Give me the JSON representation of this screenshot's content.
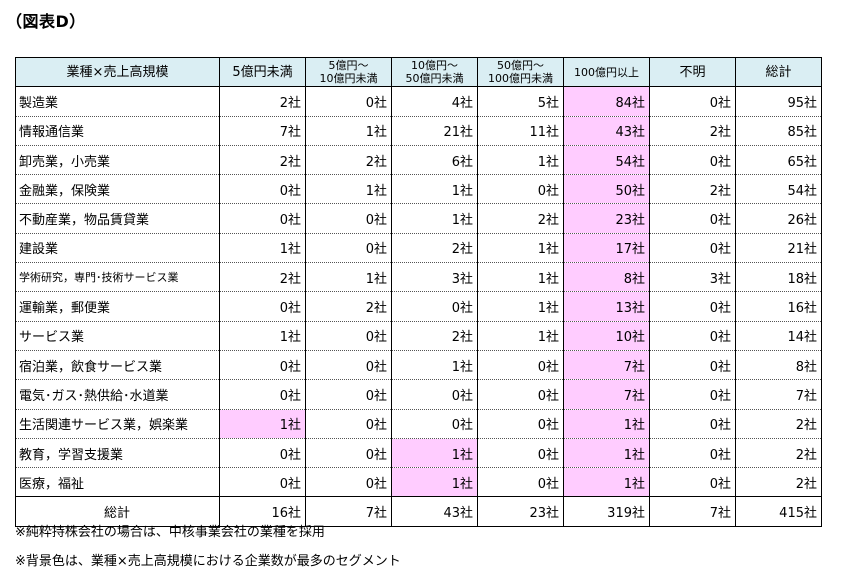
{
  "title": "（図表D）",
  "header": {
    "corner": "業種×売上高規模",
    "columns": [
      {
        "label": "5億円未満",
        "small": false
      },
      {
        "label": "5億円～\n10億円未満",
        "small": true
      },
      {
        "label": "10億円～\n50億円未満",
        "small": true
      },
      {
        "label": "50億円～\n100億円未満",
        "small": true
      },
      {
        "label": "100億円以上",
        "small": true
      },
      {
        "label": "不明",
        "small": false
      },
      {
        "label": "総計",
        "small": false
      }
    ]
  },
  "rows": [
    {
      "name": "製造業",
      "small": false,
      "values": [
        "2社",
        "0社",
        "4社",
        "5社",
        "84社",
        "0社",
        "95社"
      ],
      "highlight": [
        4
      ]
    },
    {
      "name": "情報通信業",
      "small": false,
      "values": [
        "7社",
        "1社",
        "21社",
        "11社",
        "43社",
        "2社",
        "85社"
      ],
      "highlight": [
        4
      ]
    },
    {
      "name": "卸売業，小売業",
      "small": false,
      "values": [
        "2社",
        "2社",
        "6社",
        "1社",
        "54社",
        "0社",
        "65社"
      ],
      "highlight": [
        4
      ]
    },
    {
      "name": "金融業，保険業",
      "small": false,
      "values": [
        "0社",
        "1社",
        "1社",
        "0社",
        "50社",
        "2社",
        "54社"
      ],
      "highlight": [
        4
      ]
    },
    {
      "name": "不動産業，物品賃貸業",
      "small": false,
      "values": [
        "0社",
        "0社",
        "1社",
        "2社",
        "23社",
        "0社",
        "26社"
      ],
      "highlight": [
        4
      ]
    },
    {
      "name": "建設業",
      "small": false,
      "values": [
        "1社",
        "0社",
        "2社",
        "1社",
        "17社",
        "0社",
        "21社"
      ],
      "highlight": [
        4
      ]
    },
    {
      "name": "学術研究，専門･技術サービス業",
      "small": true,
      "values": [
        "2社",
        "1社",
        "3社",
        "1社",
        "8社",
        "3社",
        "18社"
      ],
      "highlight": [
        4
      ]
    },
    {
      "name": "運輸業，郵便業",
      "small": false,
      "values": [
        "0社",
        "2社",
        "0社",
        "1社",
        "13社",
        "0社",
        "16社"
      ],
      "highlight": [
        4
      ]
    },
    {
      "name": "サービス業",
      "small": false,
      "values": [
        "1社",
        "0社",
        "2社",
        "1社",
        "10社",
        "0社",
        "14社"
      ],
      "highlight": [
        4
      ]
    },
    {
      "name": "宿泊業，飲食サービス業",
      "small": false,
      "values": [
        "0社",
        "0社",
        "1社",
        "0社",
        "7社",
        "0社",
        "8社"
      ],
      "highlight": [
        4
      ]
    },
    {
      "name": "電気･ガス･熱供給･水道業",
      "small": false,
      "values": [
        "0社",
        "0社",
        "0社",
        "0社",
        "7社",
        "0社",
        "7社"
      ],
      "highlight": [
        4
      ]
    },
    {
      "name": "生活関連サービス業，娯楽業",
      "small": false,
      "values": [
        "1社",
        "0社",
        "0社",
        "0社",
        "1社",
        "0社",
        "2社"
      ],
      "highlight": [
        0,
        4
      ]
    },
    {
      "name": "教育，学習支援業",
      "small": false,
      "values": [
        "0社",
        "0社",
        "1社",
        "0社",
        "1社",
        "0社",
        "2社"
      ],
      "highlight": [
        2,
        4
      ]
    },
    {
      "name": "医療，福祉",
      "small": false,
      "values": [
        "0社",
        "0社",
        "1社",
        "0社",
        "1社",
        "0社",
        "2社"
      ],
      "highlight": [
        2,
        4
      ]
    }
  ],
  "total": {
    "name": "総計",
    "values": [
      "16社",
      "7社",
      "43社",
      "23社",
      "319社",
      "7社",
      "415社"
    ]
  },
  "notes": [
    "※純粋持株会社の場合は、中核事業会社の業種を採用",
    "※背景色は、業種×売上高規模における企業数が最多のセグメント"
  ],
  "colors": {
    "header_bg": "#daeef3",
    "highlight_bg": "#ffccff"
  }
}
